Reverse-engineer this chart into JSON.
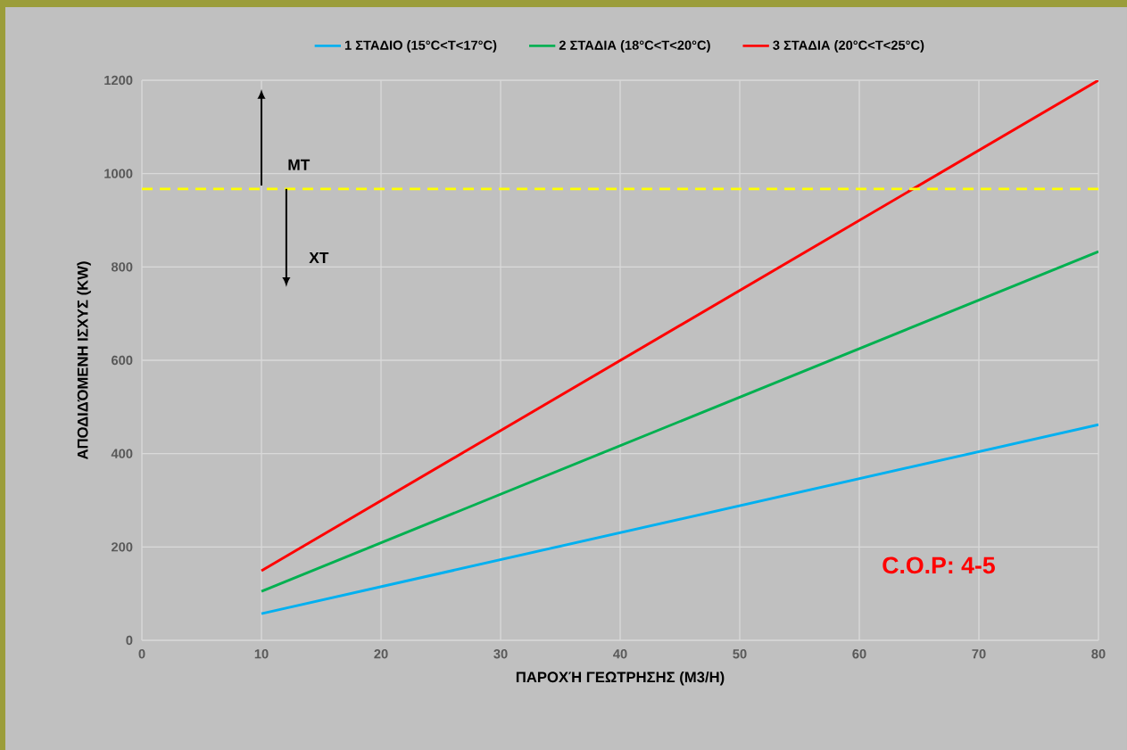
{
  "chart_data": {
    "type": "line",
    "xlabel": "ΠΑΡΟΧΉ ΓΕΩΤΡΗΣΗΣ (M3/H)",
    "ylabel": "ΑΠΟΔΙΔΌΜΕΝΗ ΙΣΧΥΣ (KW)",
    "x": [
      10,
      80
    ],
    "series": [
      {
        "name": "1 ΣΤΑΔΙΟ (15°C<T<17°C)",
        "color": "#00b0f0",
        "values": [
          57,
          462
        ]
      },
      {
        "name": "2 ΣΤΑΔΙΑ (18°C<T<20°C)",
        "color": "#00b050",
        "values": [
          105,
          833
        ]
      },
      {
        "name": "3 ΣΤΑΔΙΑ (20°C<T<25°C)",
        "color": "#ff0000",
        "values": [
          149,
          1200
        ]
      }
    ],
    "xlim": [
      0,
      80
    ],
    "xticks": [
      0,
      10,
      20,
      30,
      40,
      50,
      60,
      70,
      80
    ],
    "ylim": [
      0,
      1200
    ],
    "yticks": [
      0,
      200,
      400,
      600,
      800,
      1000,
      1200
    ],
    "ref_lines": [
      {
        "axis": "y",
        "value": 967,
        "color": "#ffff00",
        "line_style": "dashed"
      }
    ],
    "annotations": [
      "MT",
      "XT",
      "C.O.P: 4-5"
    ],
    "grid": true,
    "legend": "top",
    "marker": "none",
    "line_style": "solid"
  }
}
